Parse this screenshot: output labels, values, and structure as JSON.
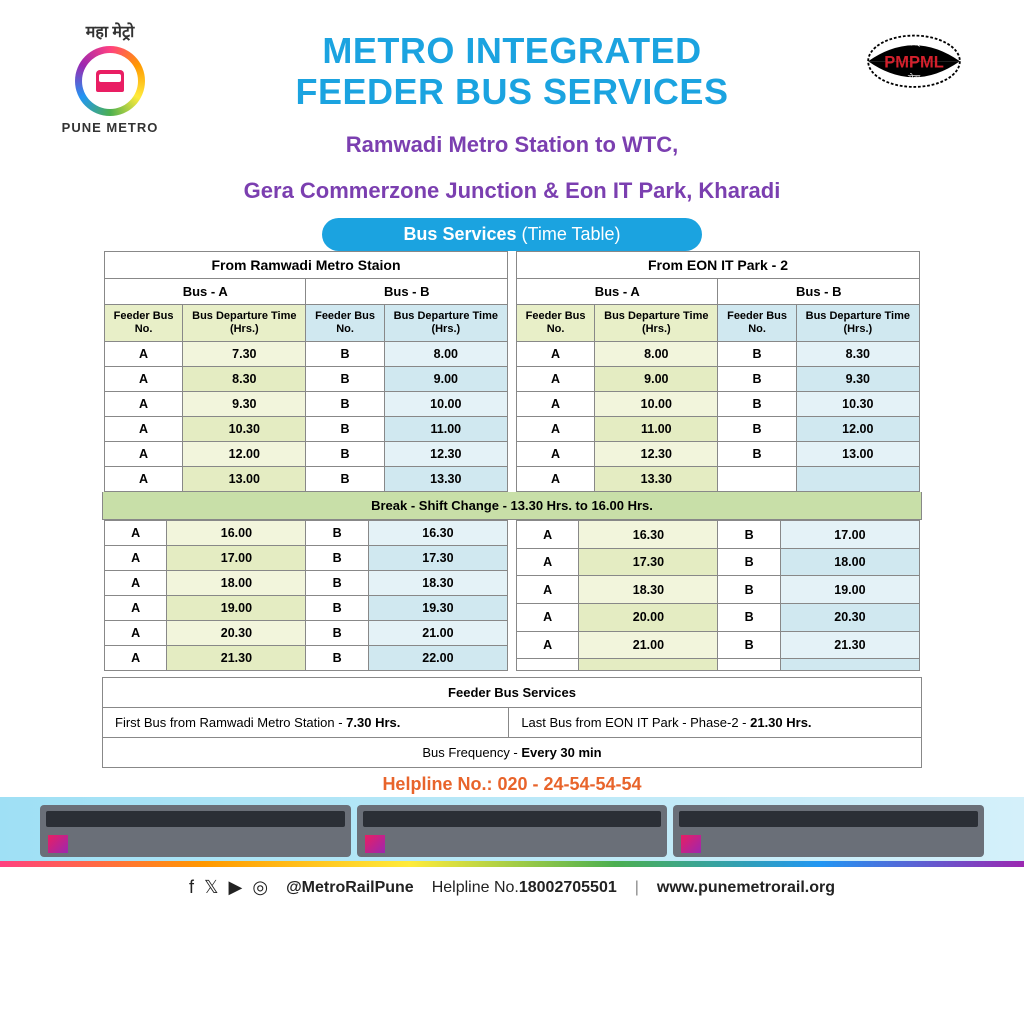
{
  "logo_left": {
    "hindi": "महा मेट्रो",
    "brand": "PUNE METRO"
  },
  "logo_right": {
    "brand": "PMPML",
    "hindi_top": "परिवहन",
    "hindi_bottom": "सेवा"
  },
  "title": {
    "line1": "METRO INTEGRATED",
    "line2": "FEEDER BUS SERVICES"
  },
  "subtitle": {
    "line1": "Ramwadi Metro Station to WTC,",
    "line2": "Gera Commerzone Junction & Eon IT Park, Kharadi"
  },
  "pill": {
    "bold": "Bus Services",
    "thin": " (Time Table)"
  },
  "colors": {
    "title": "#1ba3e0",
    "subtitle": "#7b3fb0",
    "pill_bg": "#1ba3e0",
    "col_a_hdr": "#e8efc8",
    "col_b_hdr": "#d0e8f0",
    "break_bg": "#c8dfa8",
    "helpline": "#e8642b",
    "a_time_alt": [
      "#f2f5dc",
      "#e4ecc2"
    ],
    "b_time_alt": [
      "#e4f2f7",
      "#d0e8f0"
    ]
  },
  "col_headers": {
    "id": "Feeder Bus No.",
    "time": "Bus Departure Time (Hrs.)"
  },
  "bus_labels": {
    "a": "Bus - A",
    "b": "Bus -  B"
  },
  "left_table": {
    "station": "From Ramwadi Metro Staion",
    "top": [
      {
        "a": "A",
        "at": "7.30",
        "b": "B",
        "bt": "8.00"
      },
      {
        "a": "A",
        "at": "8.30",
        "b": "B",
        "bt": "9.00"
      },
      {
        "a": "A",
        "at": "9.30",
        "b": "B",
        "bt": "10.00"
      },
      {
        "a": "A",
        "at": "10.30",
        "b": "B",
        "bt": "11.00"
      },
      {
        "a": "A",
        "at": "12.00",
        "b": "B",
        "bt": "12.30"
      },
      {
        "a": "A",
        "at": "13.00",
        "b": "B",
        "bt": "13.30"
      }
    ],
    "bottom": [
      {
        "a": "A",
        "at": "16.00",
        "b": "B",
        "bt": "16.30"
      },
      {
        "a": "A",
        "at": "17.00",
        "b": "B",
        "bt": "17.30"
      },
      {
        "a": "A",
        "at": "18.00",
        "b": "B",
        "bt": "18.30"
      },
      {
        "a": "A",
        "at": "19.00",
        "b": "B",
        "bt": "19.30"
      },
      {
        "a": "A",
        "at": "20.30",
        "b": "B",
        "bt": "21.00"
      },
      {
        "a": "A",
        "at": "21.30",
        "b": "B",
        "bt": "22.00"
      }
    ]
  },
  "right_table": {
    "station": "From EON IT Park - 2",
    "top": [
      {
        "a": "A",
        "at": "8.00",
        "b": "B",
        "bt": "8.30"
      },
      {
        "a": "A",
        "at": "9.00",
        "b": "B",
        "bt": "9.30"
      },
      {
        "a": "A",
        "at": "10.00",
        "b": "B",
        "bt": "10.30"
      },
      {
        "a": "A",
        "at": "11.00",
        "b": "B",
        "bt": "12.00"
      },
      {
        "a": "A",
        "at": "12.30",
        "b": "B",
        "bt": "13.00"
      },
      {
        "a": "A",
        "at": "13.30",
        "b": "",
        "bt": ""
      }
    ],
    "bottom": [
      {
        "a": "A",
        "at": "16.30",
        "b": "B",
        "bt": "17.00"
      },
      {
        "a": "A",
        "at": "17.30",
        "b": "B",
        "bt": "18.00"
      },
      {
        "a": "A",
        "at": "18.30",
        "b": "B",
        "bt": "19.00"
      },
      {
        "a": "A",
        "at": "20.00",
        "b": "B",
        "bt": "20.30"
      },
      {
        "a": "A",
        "at": "21.00",
        "b": "B",
        "bt": "21.30"
      },
      {
        "a": "",
        "at": "",
        "b": "",
        "bt": ""
      }
    ]
  },
  "break_text": "Break - Shift Change - 13.30 Hrs. to 16.00 Hrs.",
  "info": {
    "header": "Feeder Bus Services",
    "first_label": "First Bus from Ramwadi Metro Station - ",
    "first_value": "7.30 Hrs.",
    "last_label": "Last Bus from EON IT Park - Phase-2 - ",
    "last_value": "21.30 Hrs.",
    "freq_label": "Bus Frequency - ",
    "freq_value": "Every 30 min"
  },
  "helpline_main": "Helpline No.: 020 - 24-54-54-54",
  "footer": {
    "handle": "@MetroRailPune",
    "help_label": "Helpline No.",
    "help_no": "18002705501",
    "site": "www.punemetrorail.org"
  }
}
